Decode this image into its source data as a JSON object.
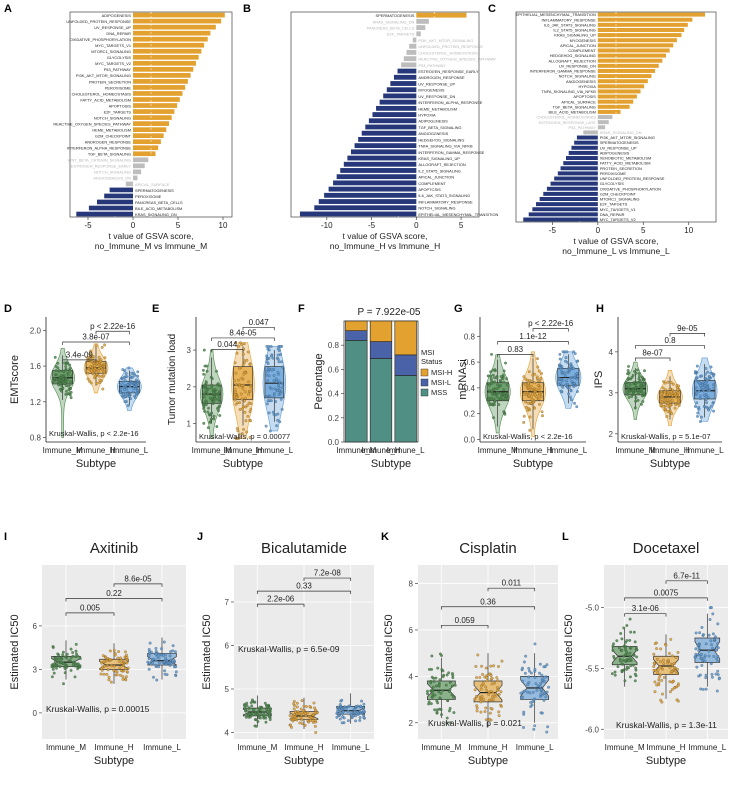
{
  "colors": {
    "up": "#e3a130",
    "down": "#26387a",
    "ns": "#bdbdbd",
    "ns_text": "#b5b5b5",
    "immune_m": "#4a8a4a",
    "immune_h": "#e3a130",
    "immune_l": "#5a9ad6",
    "msi_h": "#e3a130",
    "msi_l": "#4a63a8",
    "mss": "#4f8f84",
    "panel_bg": "#ebebeb"
  },
  "chart_data": [
    {
      "panel": "A",
      "type": "bar",
      "orientation": "horizontal",
      "xlabel": "t value of GSVA score,\nno_Immune_M vs Immune_M",
      "xlim": [
        -7,
        11
      ],
      "xticks": [
        -5,
        0,
        5,
        10
      ],
      "cutoff": [
        -2,
        2
      ],
      "categories": [
        "ADIPOGENESIS",
        "UNFOLDED_PROTEIN_RESPONSE",
        "UV_RESPONSE_UP",
        "DNA_REPAIR",
        "OXIDATIVE_PHOSPHORYLATION",
        "MYC_TARGETS_V1",
        "MTORC1_SIGNALING",
        "GLYCOLYSIS",
        "MYC_TARGETS_V2",
        "P53_PATHWAY",
        "PI3K_AKT_MTOR_SIGNALING",
        "PROTEIN_SECRETION",
        "PEROXISOME",
        "CHOLESTEROL_HOMEOSTASIS",
        "FATTY_ACID_METABOLISM",
        "APOPTOSIS",
        "E2F_TARGETS",
        "NOTCH_SIGNALING",
        "REACTIVE_OXYGEN_SPECIES_PATHWAY",
        "HEME_METABOLISM",
        "G2M_CHECKPOINT",
        "ANDROGEN_RESPONSE",
        "INTERFERON_ALPHA_RESPONSE",
        "TGF_BETA_SIGNALING",
        "WNT_BETA_CATENIN_SIGNALING",
        "ESTROGEN_RESPONSE_EARLY",
        "NOTCH_SIGNALING",
        "ANGIOGENESIS_DN",
        "APICAL_SURFACE",
        "SPERMATOGENESIS",
        "PEROXISOME",
        "PANCREAS_BETA_CELLS",
        "BILE_ACID_METABOLISM",
        "KRAS_SIGNALING_DN"
      ],
      "values": [
        10.2,
        9.8,
        9.2,
        8.6,
        8.3,
        7.9,
        7.6,
        7.3,
        7.0,
        6.7,
        6.4,
        6.1,
        5.8,
        5.5,
        5.2,
        4.9,
        4.6,
        4.3,
        4.0,
        3.7,
        3.4,
        3.1,
        2.8,
        2.5,
        1.7,
        1.3,
        0.9,
        0.5,
        -0.8,
        -2.6,
        -3.2,
        -4.0,
        -4.9,
        -6.3
      ]
    },
    {
      "panel": "B",
      "type": "bar",
      "orientation": "horizontal",
      "xlabel": "t value of GSVA score,\nno_Immune_H vs Immune_H",
      "xlim": [
        -14,
        7
      ],
      "xticks": [
        -10,
        -5,
        0,
        5
      ],
      "cutoff": [
        -2,
        2
      ],
      "categories": [
        "SPERMATOGENESIS",
        "KRAS_SIGNALING_DN",
        "PANCREAS_BETA_CELLS",
        "E2F_TARGETS",
        "PI3K_AKT_MTOR_SIGNALING",
        "UNFOLDED_PROTEIN_RESPONSE",
        "CHOLESTEROL_HOMEOSTASIS",
        "REACTIVE_OXYGEN_SPECIES_PATHWAY",
        "P53_PATHWAY",
        "ESTROGEN_RESPONSE_EARLY",
        "ANDROGEN_RESPONSE",
        "UV_RESPONSE_UP",
        "MYOGENESIS",
        "UV_RESPONSE_DN",
        "INTERFERON_ALPHA_RESPONSE",
        "HEME_METABOLISM",
        "HYPOXIA",
        "ADIPOGENESIS",
        "TGF_BETA_SIGNALING",
        "ANGIOGENESIS",
        "HEDGEHOG_SIGNALING",
        "TNFA_SIGNALING_VIA_NFKB",
        "INTERFERON_GAMMA_RESPONSE",
        "KRAS_SIGNALING_UP",
        "ALLOGRAFT_REJECTION",
        "IL2_STAT5_SIGNALING",
        "APICAL_JUNCTION",
        "COMPLEMENT",
        "APOPTOSIS",
        "IL6_JAK_STAT3_SIGNALING",
        "INFLAMMATORY_RESPONSE",
        "NOTCH_SIGNALING",
        "EPITHELIAL_MESENCHYMAL_TRANSITION"
      ],
      "values": [
        5.6,
        1.4,
        1.0,
        0.5,
        -0.4,
        -0.8,
        -1.1,
        -1.4,
        -1.7,
        -2.1,
        -2.5,
        -2.9,
        -3.3,
        -3.7,
        -4.1,
        -4.5,
        -4.9,
        -5.3,
        -5.7,
        -6.1,
        -6.5,
        -6.9,
        -7.3,
        -7.7,
        -8.1,
        -8.5,
        -8.9,
        -9.3,
        -9.8,
        -10.3,
        -10.9,
        -11.4,
        -13.0
      ]
    },
    {
      "panel": "C",
      "type": "bar",
      "orientation": "horizontal",
      "xlabel": "t value of GSVA score,\nno_Immune_L vs Immune_L",
      "xlim": [
        -9,
        13
      ],
      "xticks": [
        -5,
        0,
        5,
        10
      ],
      "cutoff": [
        -2,
        2
      ],
      "categories": [
        "EPITHELIAL_MESENCHYMAL_TRANSITION",
        "INFLAMMATORY_RESPONSE",
        "IL6_JAK_STAT3_SIGNALING",
        "IL2_STAT5_SIGNALING",
        "KRAS_SIGNALING_UP",
        "MYOGENESIS",
        "APICAL_JUNCTION",
        "COMPLEMENT",
        "HEDGEHOG_SIGNALING",
        "ALLOGRAFT_REJECTION",
        "UV_RESPONSE_DN",
        "INTERFERON_GAMMA_RESPONSE",
        "NOTCH_SIGNALING",
        "ANGIOGENESIS",
        "HYPOXIA",
        "TNFA_SIGNALING_VIA_NFKB",
        "APOPTOSIS",
        "APICAL_SURFACE",
        "TGF_BETA_SIGNALING",
        "BILE_ACID_METABOLISM",
        "CHOLESTEROL_HOMEOSTASIS",
        "ESTROGEN_RESPONSE_LATE",
        "P53_PATHWAY",
        "KRAS_SIGNALING_DN",
        "PI3K_AKT_MTOR_SIGNALING",
        "SPERMATOGENESIS",
        "UV_RESPONSE_UP",
        "ADIPOGENESIS",
        "XENOBIOTIC_METABOLISM",
        "FATTY_ACID_METABOLISM",
        "PROTEIN_SECRETION",
        "PEROXISOME",
        "UNFOLDED_PROTEIN_RESPONSE",
        "GLYCOLYSIS",
        "OXIDATIVE_PHOSPHORYLATION",
        "G2M_CHECKPOINT",
        "MTORC1_SIGNALING",
        "E2F_TARGETS",
        "MYC_TARGETS_V1",
        "DNA_REPAIR",
        "MYC_TARGETS_V2"
      ],
      "values": [
        11.8,
        10.4,
        9.9,
        9.5,
        9.2,
        8.7,
        8.3,
        7.9,
        7.5,
        7.1,
        6.7,
        6.3,
        5.9,
        5.5,
        5.1,
        4.7,
        4.3,
        3.9,
        3.5,
        2.5,
        1.6,
        1.2,
        0.8,
        -1.6,
        -2.3,
        -2.6,
        -2.9,
        -3.2,
        -3.5,
        -3.8,
        -4.1,
        -4.4,
        -4.8,
        -5.2,
        -5.6,
        -6.0,
        -6.4,
        -6.8,
        -7.2,
        -7.6,
        -8.2
      ]
    },
    {
      "panel": "D",
      "type": "boxplot",
      "ylabel": "EMTscore",
      "xlabel": "Subtype",
      "categories": [
        "Immune_M",
        "Immune_H",
        "Immune_L"
      ],
      "ylim": [
        0.75,
        2.15
      ],
      "yticks": [
        0.8,
        1.2,
        1.6,
        2.0
      ],
      "boxes": [
        {
          "q1": 1.4,
          "median": 1.47,
          "q3": 1.55,
          "wlo": 1.22,
          "whi": 1.72,
          "lo": 0.8,
          "hi": 1.8
        },
        {
          "q1": 1.52,
          "median": 1.58,
          "q3": 1.65,
          "wlo": 1.38,
          "whi": 1.82,
          "lo": 1.3,
          "hi": 1.85
        },
        {
          "q1": 1.3,
          "median": 1.37,
          "q3": 1.43,
          "wlo": 1.16,
          "whi": 1.55,
          "lo": 1.1,
          "hi": 1.58
        }
      ],
      "comparisons": [
        {
          "pair": [
            0,
            1
          ],
          "label": "3.4e-09",
          "y": 1.67
        },
        {
          "pair": [
            0,
            2
          ],
          "label": "3.8e-07",
          "y": 1.87
        },
        {
          "pair": [
            1,
            2
          ],
          "label": "p < 2.22e-16",
          "y": 1.99
        }
      ],
      "annotation": "Kruskal-Wallis, p < 2.2e-16"
    },
    {
      "panel": "E",
      "type": "boxplot",
      "ylabel": "Tumor mutation load",
      "xlabel": "Subtype",
      "categories": [
        "Immune_M",
        "Immune_H",
        "Immune_L"
      ],
      "ylim": [
        0.5,
        3.9
      ],
      "yticks": [
        1,
        2,
        3
      ],
      "boxes": [
        {
          "q1": 1.55,
          "median": 1.8,
          "q3": 2.05,
          "wlo": 1.0,
          "whi": 2.8,
          "lo": 0.6,
          "hi": 3.0
        },
        {
          "q1": 1.65,
          "median": 2.05,
          "q3": 2.55,
          "wlo": 0.95,
          "whi": 3.1,
          "lo": 0.6,
          "hi": 3.2
        },
        {
          "q1": 1.7,
          "median": 2.1,
          "q3": 2.55,
          "wlo": 1.05,
          "whi": 3.0,
          "lo": 0.8,
          "hi": 3.1
        }
      ],
      "comparisons": [
        {
          "pair": [
            0,
            1
          ],
          "label": "0.044",
          "y": 3.02
        },
        {
          "pair": [
            0,
            2
          ],
          "label": "8.4e-05",
          "y": 3.33
        },
        {
          "pair": [
            1,
            2
          ],
          "label": "0.047",
          "y": 3.62
        }
      ],
      "annotation": "Kruskal-Wallis, p = 0.00077"
    },
    {
      "panel": "F",
      "type": "stacked_bar",
      "title": "P = 7.922e-05",
      "ylabel": "Percentage",
      "xlabel": "Subtype",
      "categories": [
        "Immune_M",
        "Immune_H",
        "Immune_L"
      ],
      "ylim": [
        0,
        1
      ],
      "yticks": [
        0,
        0.2,
        0.4,
        0.6,
        0.8
      ],
      "legend_title": "MSI\nStatus",
      "series": [
        {
          "name": "MSS",
          "values": [
            0.84,
            0.69,
            0.55
          ]
        },
        {
          "name": "MSI-L",
          "values": [
            0.08,
            0.14,
            0.17
          ]
        },
        {
          "name": "MSI-H",
          "values": [
            0.08,
            0.17,
            0.28
          ]
        }
      ]
    },
    {
      "panel": "G",
      "type": "boxplot",
      "ylabel": "mRNAsi",
      "xlabel": "Subtype",
      "categories": [
        "Immune_M",
        "Immune_H",
        "Immune_L"
      ],
      "ylim": [
        -0.02,
        0.95
      ],
      "yticks": [
        0.0,
        0.2,
        0.4,
        0.6,
        0.8
      ],
      "boxes": [
        {
          "q1": 0.3,
          "median": 0.37,
          "q3": 0.44,
          "wlo": 0.1,
          "whi": 0.62,
          "lo": 0.05,
          "hi": 0.66
        },
        {
          "q1": 0.3,
          "median": 0.37,
          "q3": 0.44,
          "wlo": 0.08,
          "whi": 0.63,
          "lo": 0.02,
          "hi": 0.68
        },
        {
          "q1": 0.42,
          "median": 0.48,
          "q3": 0.55,
          "wlo": 0.28,
          "whi": 0.66,
          "lo": 0.24,
          "hi": 0.68
        }
      ],
      "comparisons": [
        {
          "pair": [
            0,
            1
          ],
          "label": "0.83",
          "y": 0.66
        },
        {
          "pair": [
            0,
            2
          ],
          "label": "1.1e-12",
          "y": 0.76
        },
        {
          "pair": [
            1,
            2
          ],
          "label": "p < 2.22e-16",
          "y": 0.86
        }
      ],
      "annotation": "Kruskal-Wallis, p < 2.2e-16"
    },
    {
      "panel": "H",
      "type": "boxplot",
      "ylabel": "IPS",
      "xlabel": "Subtype",
      "categories": [
        "Immune_M",
        "Immune_H",
        "Immune_L"
      ],
      "ylim": [
        1.8,
        4.85
      ],
      "yticks": [
        2,
        3,
        4
      ],
      "boxes": [
        {
          "q1": 2.95,
          "median": 3.1,
          "q3": 3.25,
          "wlo": 2.6,
          "whi": 3.6,
          "lo": 2.35,
          "hi": 3.75
        },
        {
          "q1": 2.75,
          "median": 2.9,
          "q3": 3.05,
          "wlo": 2.35,
          "whi": 3.4,
          "lo": 2.2,
          "hi": 3.55
        },
        {
          "q1": 2.85,
          "median": 3.05,
          "q3": 3.3,
          "wlo": 2.4,
          "whi": 3.7,
          "lo": 2.3,
          "hi": 3.85
        }
      ],
      "comparisons": [
        {
          "pair": [
            0,
            1
          ],
          "label": "8e-07",
          "y": 3.85
        },
        {
          "pair": [
            0,
            2
          ],
          "label": "0.8",
          "y": 4.15
        },
        {
          "pair": [
            1,
            2
          ],
          "label": "9e-05",
          "y": 4.45
        }
      ],
      "annotation": "Kruskal-Wallis, p = 5.1e-07"
    },
    {
      "panel": "I",
      "type": "notched_boxplot",
      "title": "Axitinib",
      "ylabel": "Estimated IC50",
      "xlabel": "Subtype",
      "categories": [
        "Immune_M",
        "Immune_H",
        "Immune_L"
      ],
      "ylim": [
        -1.8,
        10.2
      ],
      "yticks": [
        0,
        3,
        6
      ],
      "boxes": [
        {
          "q1": 3.2,
          "median": 3.5,
          "q3": 3.9,
          "wlo": 2.3,
          "whi": 5.0,
          "lo": 1.8,
          "hi": 5.3
        },
        {
          "q1": 3.0,
          "median": 3.3,
          "q3": 3.7,
          "wlo": 2.0,
          "whi": 4.8,
          "lo": -1.0,
          "hi": 6.1
        },
        {
          "q1": 3.3,
          "median": 3.6,
          "q3": 4.1,
          "wlo": 2.3,
          "whi": 5.2,
          "lo": 2.0,
          "hi": 5.5
        }
      ],
      "comparisons": [
        {
          "pair": [
            0,
            1
          ],
          "label": "0.005",
          "y": 6.9
        },
        {
          "pair": [
            0,
            2
          ],
          "label": "0.22",
          "y": 7.9
        },
        {
          "pair": [
            1,
            2
          ],
          "label": "8.6e-05",
          "y": 8.9
        }
      ],
      "annotation": "Kruskal-Wallis, p = 0.00015"
    },
    {
      "panel": "J",
      "type": "notched_boxplot",
      "title": "Bicalutamide",
      "ylabel": "Estimated IC50",
      "xlabel": "Subtype",
      "categories": [
        "Immune_M",
        "Immune_H",
        "Immune_L"
      ],
      "ylim": [
        3.85,
        7.85
      ],
      "yticks": [
        4,
        5,
        6,
        7
      ],
      "boxes": [
        {
          "q1": 4.38,
          "median": 4.47,
          "q3": 4.56,
          "wlo": 4.15,
          "whi": 4.85,
          "lo": 4.1,
          "hi": 4.95
        },
        {
          "q1": 4.3,
          "median": 4.38,
          "q3": 4.48,
          "wlo": 4.08,
          "whi": 4.8,
          "lo": 4.0,
          "hi": 5.65
        },
        {
          "q1": 4.42,
          "median": 4.5,
          "q3": 4.6,
          "wlo": 4.2,
          "whi": 4.9,
          "lo": 4.1,
          "hi": 6.9
        }
      ],
      "comparisons": [
        {
          "pair": [
            0,
            1
          ],
          "label": "2.2e-06",
          "y": 6.95
        },
        {
          "pair": [
            0,
            2
          ],
          "label": "0.33",
          "y": 7.25
        },
        {
          "pair": [
            1,
            2
          ],
          "label": "7.2e-08",
          "y": 7.55
        }
      ],
      "annotation": "Kruskal-Wallis, p = 6.5e-09"
    },
    {
      "panel": "K",
      "type": "notched_boxplot",
      "title": "Cisplatin",
      "ylabel": "Estimated IC50",
      "xlabel": "Subtype",
      "categories": [
        "Immune_M",
        "Immune_H",
        "Immune_L"
      ],
      "ylim": [
        1.3,
        8.8
      ],
      "yticks": [
        2,
        4,
        6,
        8
      ],
      "boxes": [
        {
          "q1": 3.0,
          "median": 3.4,
          "q3": 3.8,
          "wlo": 2.2,
          "whi": 4.8,
          "lo": 2.0,
          "hi": 5.3
        },
        {
          "q1": 2.9,
          "median": 3.3,
          "q3": 3.8,
          "wlo": 1.8,
          "whi": 5.0,
          "lo": 1.5,
          "hi": 5.6
        },
        {
          "q1": 3.0,
          "median": 3.5,
          "q3": 4.0,
          "wlo": 2.0,
          "whi": 5.0,
          "lo": 1.6,
          "hi": 5.4
        }
      ],
      "comparisons": [
        {
          "pair": [
            0,
            1
          ],
          "label": "0.059",
          "y": 6.2
        },
        {
          "pair": [
            0,
            2
          ],
          "label": "0.36",
          "y": 7.0
        },
        {
          "pair": [
            1,
            2
          ],
          "label": "0.011",
          "y": 7.8
        }
      ],
      "annotation": "Kruskal-Wallis, p = 0.021"
    },
    {
      "panel": "L",
      "type": "notched_boxplot",
      "title": "Docetaxel",
      "ylabel": "Estimated IC50",
      "xlabel": "Subtype",
      "categories": [
        "Immune_M",
        "Immune_H",
        "Immune_L"
      ],
      "ylim": [
        -6.08,
        -4.65
      ],
      "yticks": [
        -6.0,
        -5.5,
        -5.0
      ],
      "boxes": [
        {
          "q1": -5.47,
          "median": -5.4,
          "q3": -5.32,
          "wlo": -5.65,
          "whi": -5.17,
          "lo": -5.75,
          "hi": -5.05
        },
        {
          "q1": -5.55,
          "median": -5.48,
          "q3": -5.4,
          "wlo": -5.75,
          "whi": -5.22,
          "lo": -5.95,
          "hi": -5.15
        },
        {
          "q1": -5.45,
          "median": -5.35,
          "q3": -5.25,
          "wlo": -5.65,
          "whi": -5.05,
          "lo": -5.8,
          "hi": -5.0
        }
      ],
      "comparisons": [
        {
          "pair": [
            0,
            1
          ],
          "label": "3.1e-06",
          "y": -5.05
        },
        {
          "pair": [
            0,
            2
          ],
          "label": "0.0075",
          "y": -4.92
        },
        {
          "pair": [
            1,
            2
          ],
          "label": "6.7e-11",
          "y": -4.78
        }
      ],
      "annotation": "Kruskal-Wallis, p = 1.3e-11"
    }
  ]
}
